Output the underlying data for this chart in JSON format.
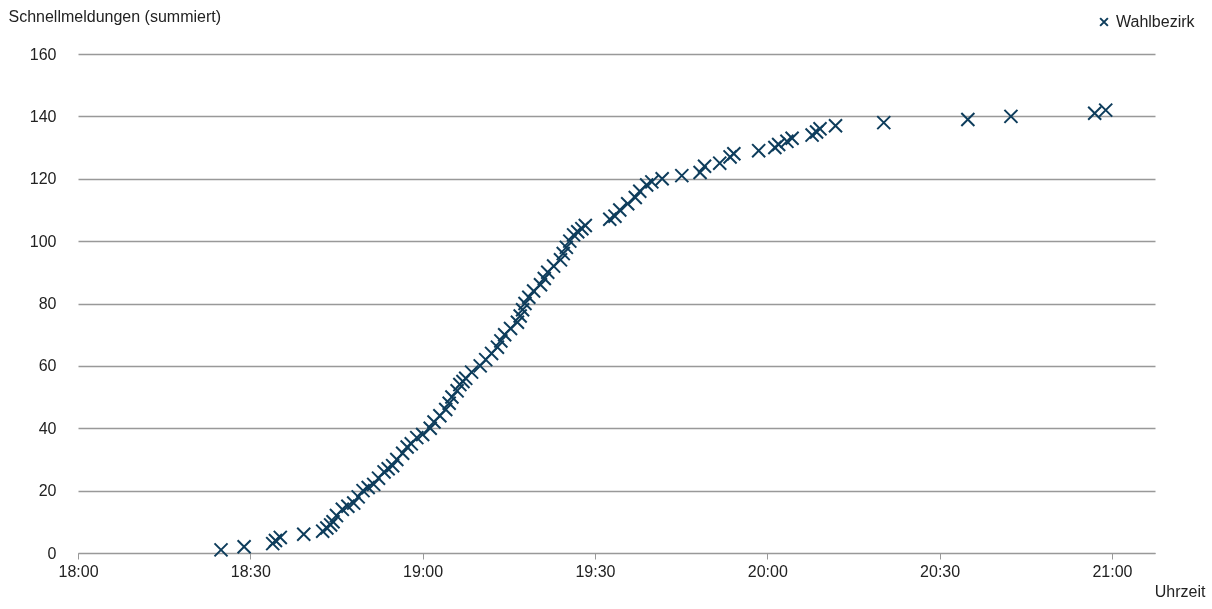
{
  "chart_data": {
    "type": "scatter",
    "xlabel": "Uhrzeit",
    "ylabel": "Schnellmeldungen (summiert)",
    "xlim": [
      18,
      21.125
    ],
    "xticks": [
      {
        "value": 18,
        "label": "18:00"
      },
      {
        "value": 18.5,
        "label": "18:30"
      },
      {
        "value": 19,
        "label": "19:00"
      },
      {
        "value": 19.5,
        "label": "19:30"
      },
      {
        "value": 20,
        "label": "20:00"
      },
      {
        "value": 20.5,
        "label": "20:30"
      },
      {
        "value": 21,
        "label": "21:00"
      }
    ],
    "ylim": [
      0,
      160
    ],
    "yticks": [
      0,
      20,
      40,
      60,
      80,
      100,
      120,
      140,
      160
    ],
    "grid": "y",
    "legend": "top right",
    "marker": "cross",
    "series": [
      {
        "name": "Wahlbezirk",
        "color": "#0e3d5c",
        "x": [
          18.415,
          18.482,
          18.565,
          18.573,
          18.587,
          18.655,
          18.71,
          18.722,
          18.733,
          18.74,
          18.75,
          18.767,
          18.783,
          18.8,
          18.813,
          18.827,
          18.842,
          18.858,
          18.872,
          18.888,
          18.9,
          18.913,
          18.925,
          18.942,
          18.955,
          18.967,
          18.983,
          19,
          19.022,
          19.033,
          19.05,
          19.067,
          19.077,
          19.085,
          19.1,
          19.108,
          19.117,
          19.125,
          19.142,
          19.167,
          19.183,
          19.2,
          19.217,
          19.227,
          19.238,
          19.255,
          19.275,
          19.283,
          19.29,
          19.297,
          19.308,
          19.322,
          19.342,
          19.353,
          19.363,
          19.38,
          19.4,
          19.408,
          19.417,
          19.427,
          19.438,
          19.45,
          19.462,
          19.472,
          19.543,
          19.558,
          19.572,
          19.595,
          19.617,
          19.63,
          19.65,
          19.665,
          19.695,
          19.752,
          19.805,
          19.818,
          19.862,
          19.892,
          19.903,
          19.975,
          20.022,
          20.033,
          20.057,
          20.072,
          20.13,
          20.143,
          20.153,
          20.198,
          20.338,
          20.582,
          20.707,
          20.95,
          20.982
        ],
        "values": [
          1,
          2,
          3,
          4,
          5,
          6,
          7,
          8,
          9,
          10,
          12,
          14,
          15,
          16,
          18,
          20,
          21,
          22,
          24,
          26,
          27,
          28,
          30,
          32,
          34,
          35,
          37,
          38,
          40,
          42,
          44,
          46,
          48,
          50,
          52,
          54,
          55,
          56,
          58,
          60,
          62,
          64,
          66,
          68,
          70,
          72,
          74,
          76,
          78,
          80,
          82,
          84,
          86,
          88,
          90,
          92,
          94,
          96,
          98,
          100,
          102,
          103,
          104,
          105,
          107,
          108,
          110,
          112,
          114,
          116,
          118,
          119,
          120,
          121,
          122,
          124,
          125,
          127,
          128,
          129,
          130,
          131,
          132,
          133,
          134,
          135,
          136,
          137,
          138,
          139,
          140,
          141,
          142
        ]
      }
    ]
  }
}
